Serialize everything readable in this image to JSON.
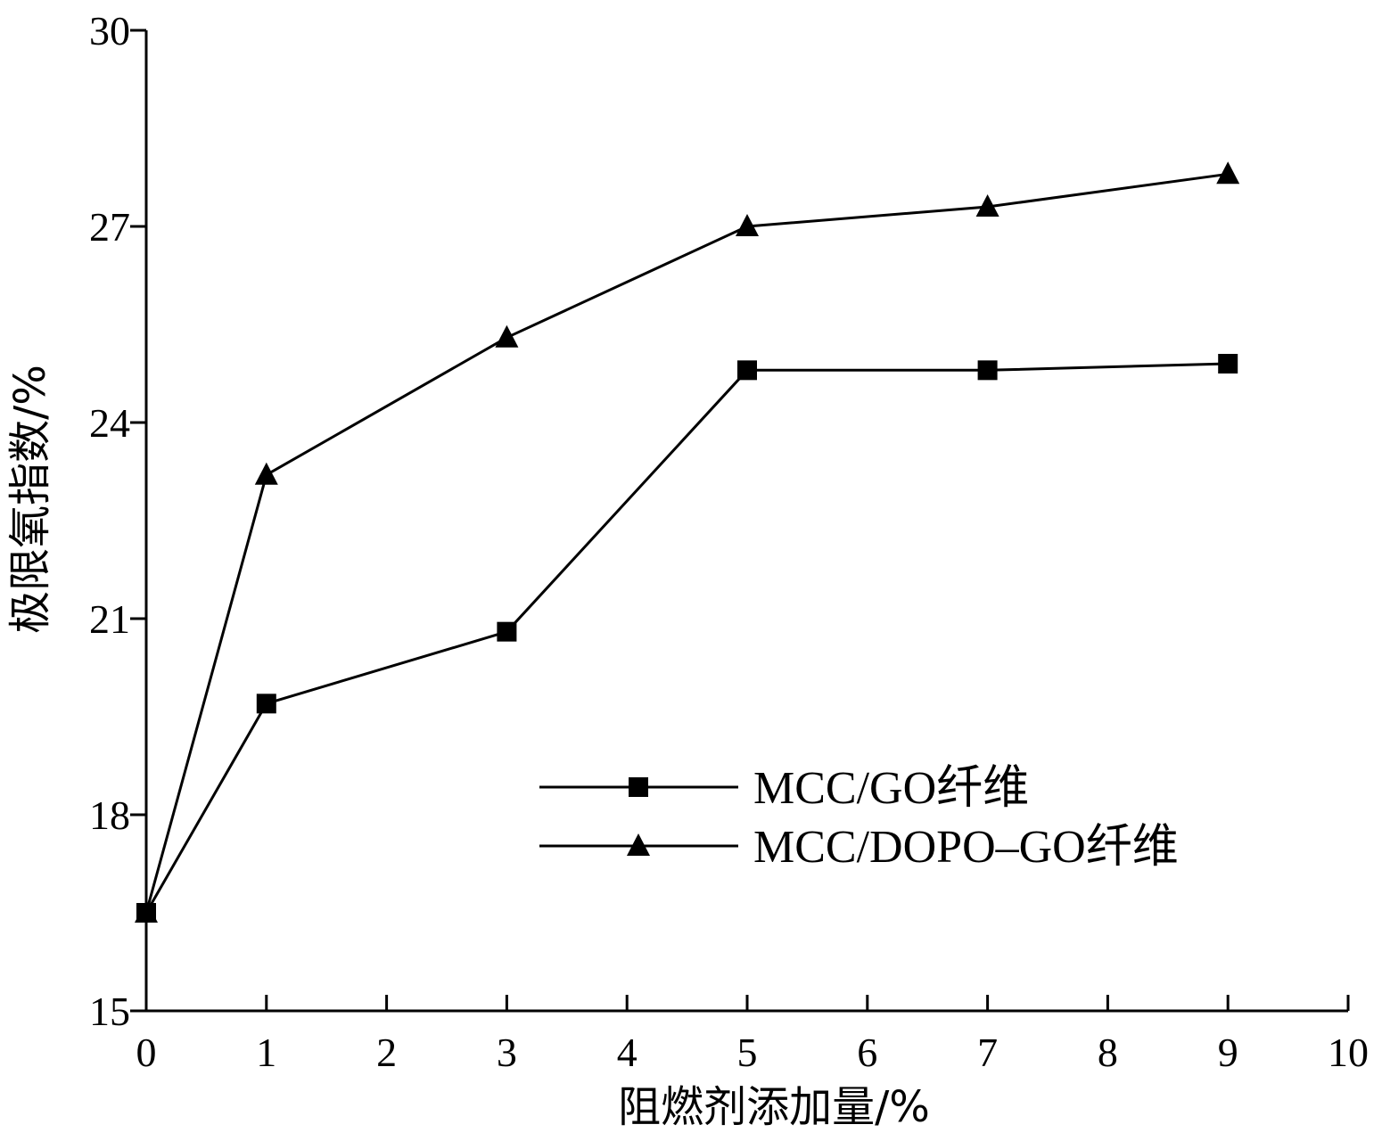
{
  "chart_data": {
    "type": "line",
    "xlabel": "阻燃剂添加量/%",
    "ylabel": "极限氧指数/%",
    "xlim": [
      0,
      10
    ],
    "ylim": [
      15,
      30
    ],
    "x_ticks": [
      "0",
      "1",
      "2",
      "3",
      "4",
      "5",
      "6",
      "7",
      "8",
      "9",
      "10"
    ],
    "y_ticks": [
      "15",
      "18",
      "21",
      "24",
      "27",
      "30"
    ],
    "x": [
      0,
      1,
      3,
      5,
      7,
      9
    ],
    "series": [
      {
        "name": "MCC/GO纤维",
        "marker": "square",
        "values": [
          16.5,
          19.7,
          20.8,
          24.8,
          24.8,
          24.9
        ]
      },
      {
        "name": "MCC/DOPO–GO纤维",
        "marker": "triangle",
        "values": [
          16.5,
          23.2,
          25.3,
          27.0,
          27.3,
          27.8
        ]
      }
    ],
    "legend_position": "lower-right",
    "grid": false,
    "colors": {
      "line": "#000000",
      "marker": "#000000"
    }
  }
}
